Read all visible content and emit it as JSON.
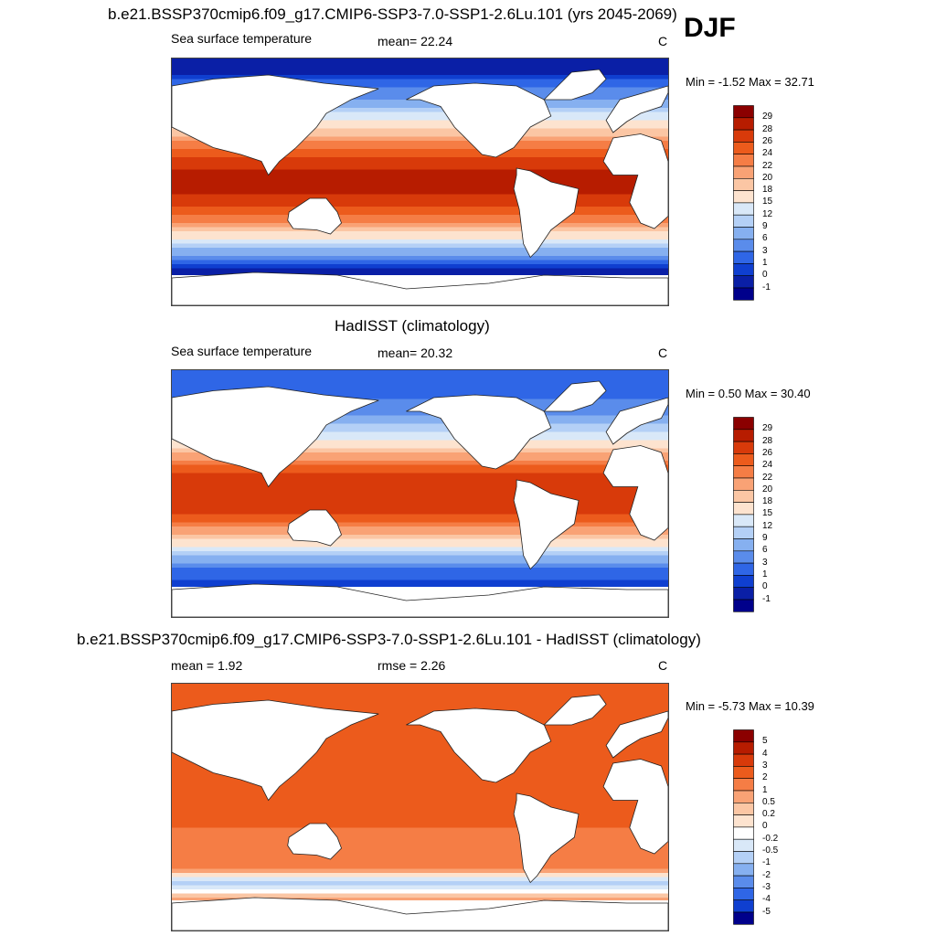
{
  "season": "DJF",
  "panels": [
    {
      "id": "model",
      "title": "b.e21.BSSP370cmip6.f09_g17.CMIP6-SSP3-7.0-SSP1-2.6Lu.101 (yrs 2045-2069)",
      "left_text": "Sea surface temperature",
      "mid_text": "mean=  22.24",
      "right_text": "C",
      "minmax": "Min =  -1.52 Max =  32.71"
    },
    {
      "id": "obs",
      "title": "HadISST (climatology)",
      "left_text": "Sea surface temperature",
      "mid_text": "mean=  20.32",
      "right_text": "C",
      "minmax": "Min =   0.50 Max =  30.40"
    },
    {
      "id": "diff",
      "title": "b.e21.BSSP370cmip6.f09_g17.CMIP6-SSP3-7.0-SSP1-2.6Lu.101 - HadISST (climatology)",
      "left_text": "mean =   1.92",
      "mid_text": "rmse =   2.26",
      "right_text": "C",
      "minmax": "Min =  -5.73 Max =  10.39"
    }
  ],
  "chart_data": [
    {
      "type": "heatmap",
      "title": "b.e21.BSSP370cmip6.f09_g17.CMIP6-SSP3-7.0-SSP1-2.6Lu.101 (yrs 2045-2069)",
      "variable": "Sea surface temperature",
      "units": "C",
      "mean": 22.24,
      "min": -1.52,
      "max": 32.71,
      "colorbar_levels": [
        "29",
        "28",
        "26",
        "24",
        "22",
        "20",
        "18",
        "15",
        "12",
        "9",
        "6",
        "3",
        "1",
        "0",
        "-1"
      ],
      "colorbar_colors": [
        "#8b0000",
        "#b71c00",
        "#d83a0a",
        "#ec5b1c",
        "#f57d45",
        "#f9a275",
        "#fbc6a4",
        "#fde3cf",
        "#d9e8f8",
        "#b4d0f6",
        "#86b0f0",
        "#5a8ceb",
        "#2f66e6",
        "#0f3fd0",
        "#0a1fa6",
        "#00008b"
      ],
      "lat_profile": [
        {
          "lat": 80,
          "value": -1
        },
        {
          "lat": 60,
          "value": 6
        },
        {
          "lat": 45,
          "value": 15
        },
        {
          "lat": 30,
          "value": 22
        },
        {
          "lat": 15,
          "value": 27
        },
        {
          "lat": 0,
          "value": 29
        },
        {
          "lat": -15,
          "value": 27
        },
        {
          "lat": -30,
          "value": 22
        },
        {
          "lat": -45,
          "value": 12
        },
        {
          "lat": -55,
          "value": 4
        },
        {
          "lat": -65,
          "value": -1
        }
      ]
    },
    {
      "type": "heatmap",
      "title": "HadISST (climatology)",
      "variable": "Sea surface temperature",
      "units": "C",
      "mean": 20.32,
      "min": 0.5,
      "max": 30.4,
      "colorbar_levels": [
        "29",
        "28",
        "26",
        "24",
        "22",
        "20",
        "18",
        "15",
        "12",
        "9",
        "6",
        "3",
        "1",
        "0",
        "-1"
      ],
      "colorbar_colors": [
        "#8b0000",
        "#b71c00",
        "#d83a0a",
        "#ec5b1c",
        "#f57d45",
        "#f9a275",
        "#fbc6a4",
        "#fde3cf",
        "#d9e8f8",
        "#b4d0f6",
        "#86b0f0",
        "#5a8ceb",
        "#2f66e6",
        "#0f3fd0",
        "#0a1fa6",
        "#00008b"
      ],
      "lat_profile": [
        {
          "lat": 80,
          "value": 1
        },
        {
          "lat": 60,
          "value": 5
        },
        {
          "lat": 45,
          "value": 12
        },
        {
          "lat": 30,
          "value": 20
        },
        {
          "lat": 15,
          "value": 26
        },
        {
          "lat": 0,
          "value": 28
        },
        {
          "lat": -15,
          "value": 26
        },
        {
          "lat": -30,
          "value": 20
        },
        {
          "lat": -45,
          "value": 10
        },
        {
          "lat": -55,
          "value": 3
        },
        {
          "lat": -65,
          "value": 0
        }
      ]
    },
    {
      "type": "heatmap",
      "title": "b.e21.BSSP370cmip6.f09_g17.CMIP6-SSP3-7.0-SSP1-2.6Lu.101 - HadISST (climatology)",
      "units": "C",
      "mean": 1.92,
      "rmse": 2.26,
      "min": -5.73,
      "max": 10.39,
      "colorbar_levels": [
        "5",
        "4",
        "3",
        "2",
        "1",
        "0.5",
        "0.2",
        "0",
        "-0.2",
        "-0.5",
        "-1",
        "-2",
        "-3",
        "-4",
        "-5"
      ],
      "colorbar_colors": [
        "#8b0000",
        "#b71c00",
        "#d83a0a",
        "#ec5b1c",
        "#f57d45",
        "#f9a275",
        "#fbc6a4",
        "#fde3cf",
        "#ffffff",
        "#d9e8f8",
        "#b4d0f6",
        "#86b0f0",
        "#5a8ceb",
        "#2f66e6",
        "#0f3fd0",
        "#00008b"
      ],
      "lat_profile": [
        {
          "lat": 80,
          "value": 2
        },
        {
          "lat": 60,
          "value": 2
        },
        {
          "lat": 45,
          "value": 2
        },
        {
          "lat": 30,
          "value": 2
        },
        {
          "lat": 15,
          "value": 2
        },
        {
          "lat": 0,
          "value": 2
        },
        {
          "lat": -15,
          "value": 2
        },
        {
          "lat": -30,
          "value": 1
        },
        {
          "lat": -45,
          "value": 1
        },
        {
          "lat": -55,
          "value": -1
        },
        {
          "lat": -65,
          "value": 0.5
        }
      ]
    }
  ]
}
